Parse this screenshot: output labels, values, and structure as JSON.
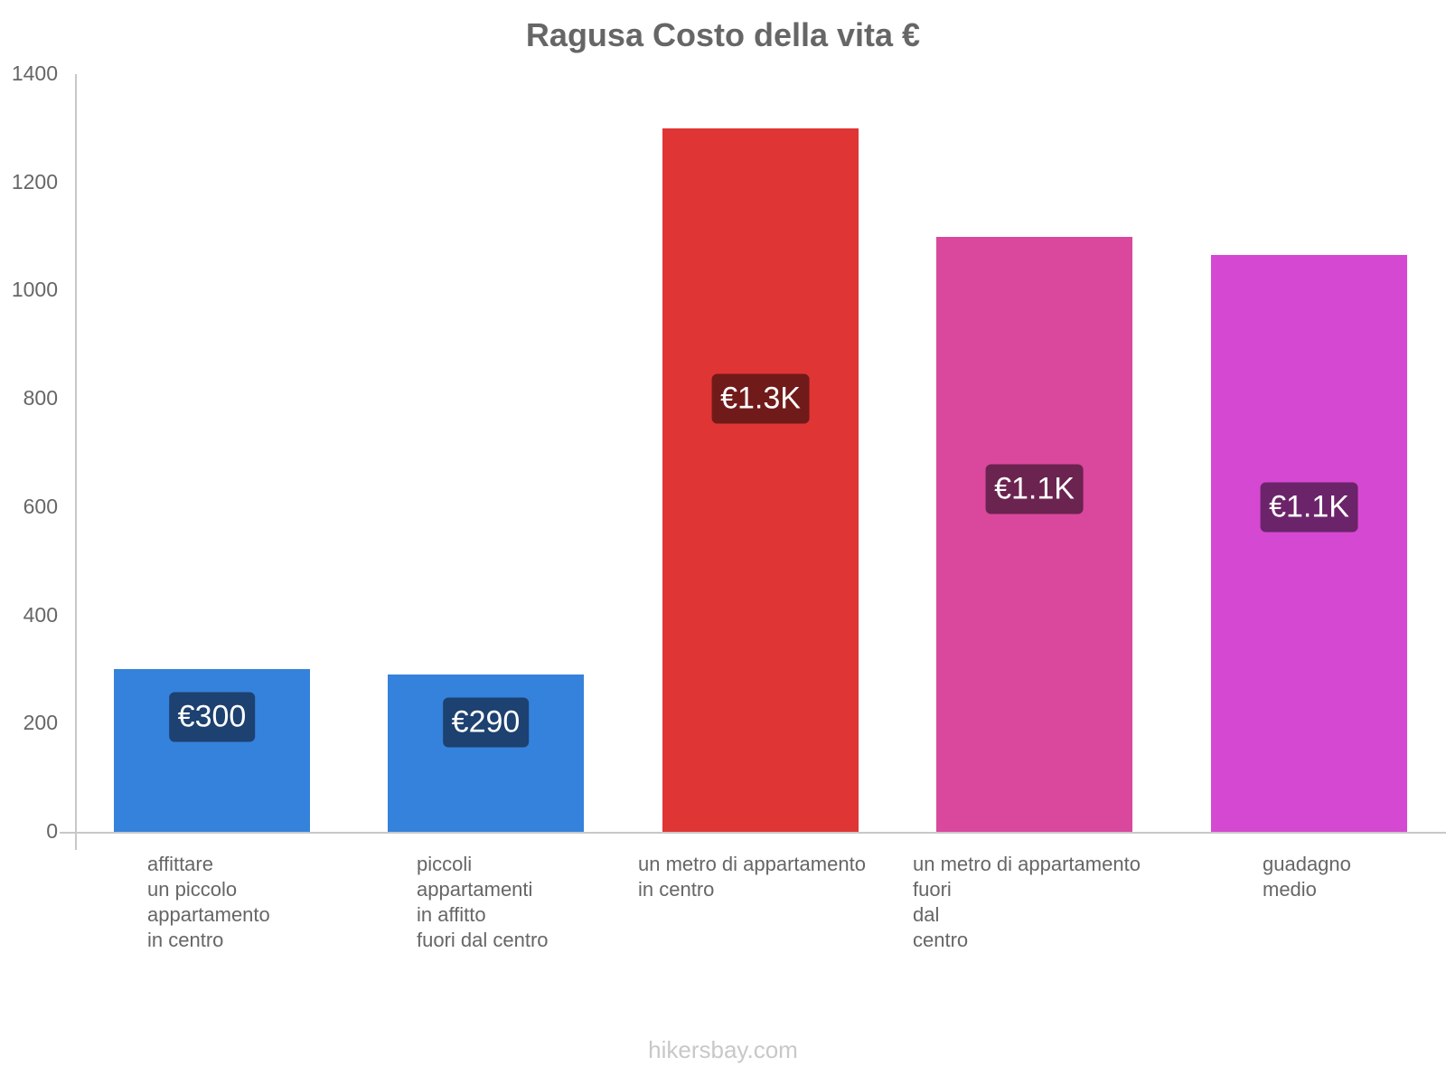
{
  "chart_data": {
    "type": "bar",
    "title": "Ragusa Costo della vita €",
    "xlabel": "",
    "ylabel": "",
    "ylim": [
      0,
      1400
    ],
    "yticks": [
      0,
      200,
      400,
      600,
      800,
      1000,
      1200,
      1400
    ],
    "grid": false,
    "legend": null,
    "categories": [
      "affittare un piccolo appartamento in centro",
      "piccoli appartamenti in affitto fuori dal centro",
      "un metro di appartamento in centro",
      "un metro di appartamento fuori dal centro",
      "guadagno medio"
    ],
    "values": [
      300,
      290,
      1300,
      1100,
      1066
    ],
    "data_labels": [
      "€300",
      "€290",
      "€1.3K",
      "€1.1K",
      "€1.1K"
    ],
    "colors": [
      "#3582dc",
      "#3582dc",
      "#e03535",
      "#d9489c",
      "#d548d2"
    ],
    "label_bg_colors": [
      "#1d4170",
      "#1d4170",
      "#711a1a",
      "#6b234f",
      "#6b2469"
    ]
  },
  "header": {
    "title": "Ragusa Costo della vita €"
  },
  "axis": {
    "y_ticks": [
      "0",
      "200",
      "400",
      "600",
      "800",
      "1000",
      "1200",
      "1400"
    ]
  },
  "x_labels": [
    "affittare\nun piccolo\nappartamento\nin centro",
    "piccoli\nappartamenti\nin affitto\nfuori dal centro",
    "un metro di appartamento\nin centro",
    "un metro di appartamento\nfuori\ndal\ncentro",
    "guadagno\nmedio"
  ],
  "footer": {
    "watermark": "hikersbay.com"
  }
}
